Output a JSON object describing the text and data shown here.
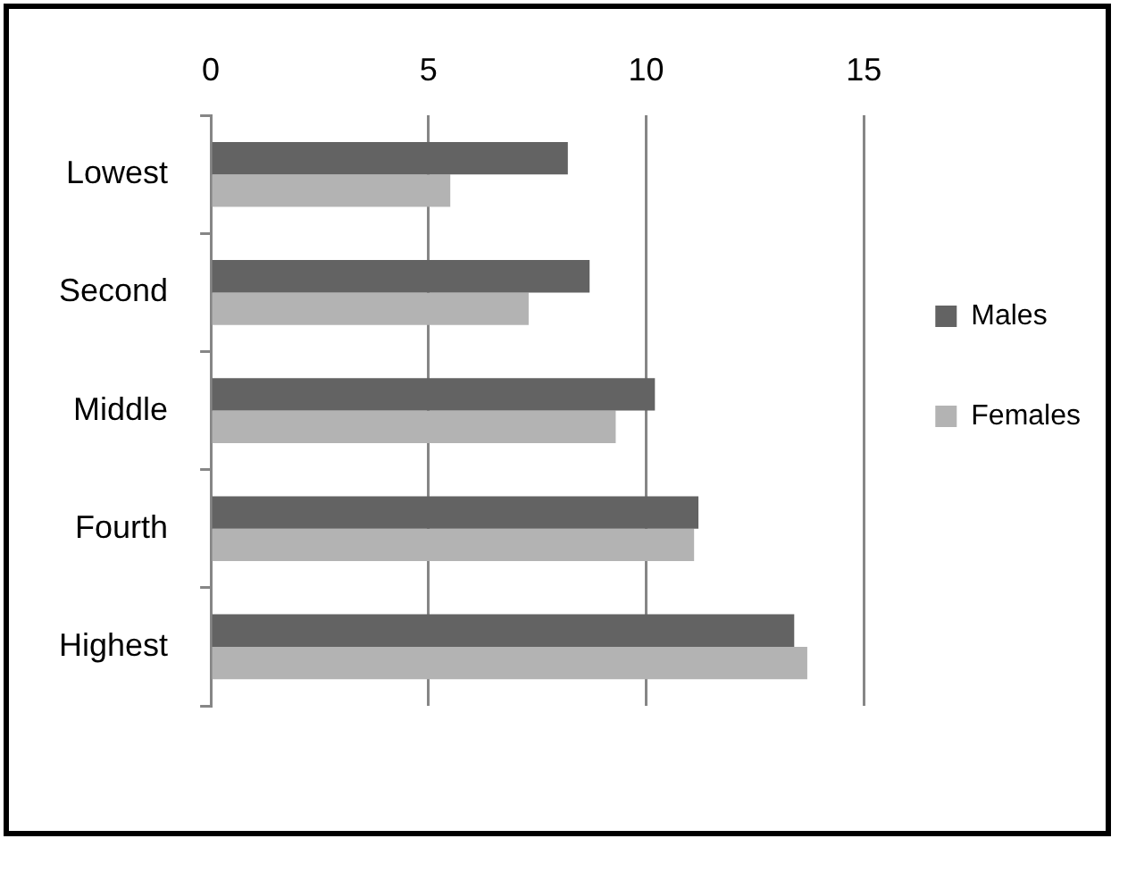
{
  "chart_data": {
    "type": "bar",
    "orientation": "horizontal",
    "categories": [
      "Lowest",
      "Second",
      "Middle",
      "Fourth",
      "Highest"
    ],
    "series": [
      {
        "name": "Males",
        "color": "#636363",
        "values": [
          8.2,
          8.7,
          10.2,
          11.2,
          13.4
        ]
      },
      {
        "name": "Females",
        "color": "#b3b3b3",
        "values": [
          5.5,
          7.3,
          9.3,
          11.1,
          13.7
        ]
      }
    ],
    "xlim": [
      0,
      15
    ],
    "xticks": [
      0,
      5,
      10,
      15
    ],
    "grid": "x",
    "legend": "right"
  }
}
